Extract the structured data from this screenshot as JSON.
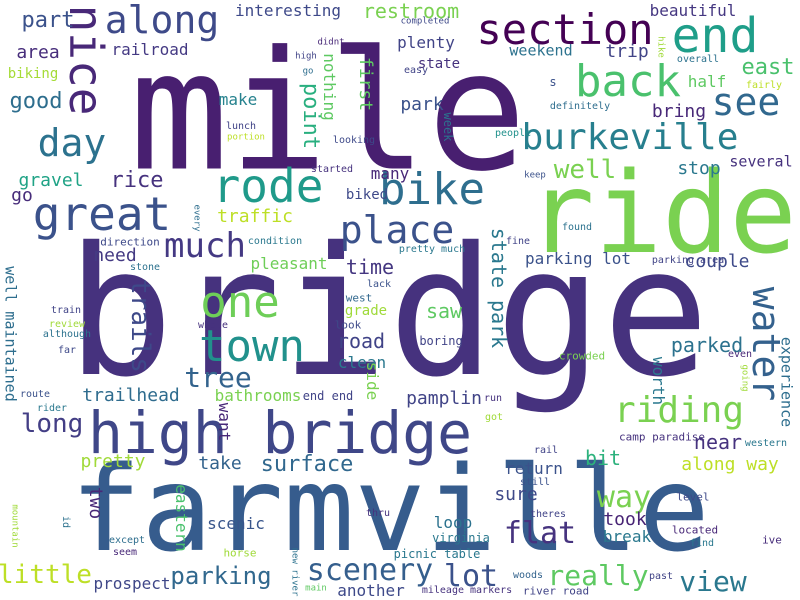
{
  "words": [
    {
      "text": "bridge",
      "color": "#46327e"
    },
    {
      "text": "farmville",
      "color": "#365c8d"
    },
    {
      "text": "mile",
      "color": "#481f70"
    },
    {
      "text": "ride",
      "color": "#7ad151"
    },
    {
      "text": "high bridge",
      "color": "#3f4788"
    },
    {
      "text": "bike",
      "color": "#2e6e8e"
    },
    {
      "text": "rode",
      "color": "#1f9a8a"
    },
    {
      "text": "great",
      "color": "#3b528b"
    },
    {
      "text": "section",
      "color": "#440154"
    },
    {
      "text": "end",
      "color": "#1f9e89"
    },
    {
      "text": "back",
      "color": "#4ac16d"
    },
    {
      "text": "along",
      "color": "#3e4a89"
    },
    {
      "text": "nice",
      "color": "#482878"
    },
    {
      "text": "burkeville",
      "color": "#277f8e"
    },
    {
      "text": "see",
      "color": "#31688e"
    },
    {
      "text": "day",
      "color": "#2c728e"
    },
    {
      "text": "place",
      "color": "#3b528b"
    },
    {
      "text": "much",
      "color": "#443983"
    },
    {
      "text": "one",
      "color": "#6ece58"
    },
    {
      "text": "town",
      "color": "#21918c"
    },
    {
      "text": "water",
      "color": "#34618d"
    },
    {
      "text": "riding",
      "color": "#7ad151"
    },
    {
      "text": "scenery",
      "color": "#355f8d"
    },
    {
      "text": "lot",
      "color": "#3b528b"
    },
    {
      "text": "really",
      "color": "#5ec962"
    },
    {
      "text": "way",
      "color": "#7ad151"
    },
    {
      "text": "view",
      "color": "#2a788e"
    },
    {
      "text": "flat",
      "color": "#46337f"
    },
    {
      "text": "parking",
      "color": "#31688e"
    },
    {
      "text": "little",
      "color": "#bddf26"
    },
    {
      "text": "trails",
      "color": "#3e4989"
    },
    {
      "text": "tree",
      "color": "#33638d"
    },
    {
      "text": "long",
      "color": "#433e85"
    },
    {
      "text": "surface",
      "color": "#31688e"
    },
    {
      "text": "point",
      "color": "#29af7f"
    },
    {
      "text": "well",
      "color": "#7ad151"
    },
    {
      "text": "east",
      "color": "#4ac16d"
    },
    {
      "text": "part",
      "color": "#3b528b"
    },
    {
      "text": "rice",
      "color": "#46327e"
    },
    {
      "text": "good",
      "color": "#2e6e8e"
    },
    {
      "text": "restroom",
      "color": "#7ad151"
    },
    {
      "text": "time",
      "color": "#453781"
    },
    {
      "text": "road",
      "color": "#404387"
    },
    {
      "text": "saw",
      "color": "#5ec962"
    },
    {
      "text": "parked",
      "color": "#2c728e"
    },
    {
      "text": "state park",
      "color": "#2a788e"
    },
    {
      "text": "couple",
      "color": "#3e4a89"
    },
    {
      "text": "water",
      "color": "#34618d"
    },
    {
      "text": "near",
      "color": "#46327e"
    },
    {
      "text": "pamplin",
      "color": "#414487"
    },
    {
      "text": "trailhead",
      "color": "#2f6c8e"
    },
    {
      "text": "bathrooms",
      "color": "#7ad151"
    },
    {
      "text": "pretty",
      "color": "#a0da39"
    },
    {
      "text": "take",
      "color": "#33638d"
    },
    {
      "text": "sure",
      "color": "#3e4989"
    },
    {
      "text": "bit",
      "color": "#2db27d"
    },
    {
      "text": "along way",
      "color": "#bddf26"
    },
    {
      "text": "took",
      "color": "#482475"
    },
    {
      "text": "break",
      "color": "#2a788e"
    },
    {
      "text": "loop",
      "color": "#2c728e"
    },
    {
      "text": "scenic",
      "color": "#39568c"
    },
    {
      "text": "two",
      "color": "#482878"
    },
    {
      "text": "eastern",
      "color": "#4ac16d"
    },
    {
      "text": "prospect",
      "color": "#3f4788"
    },
    {
      "text": "another",
      "color": "#3e4989"
    },
    {
      "text": "return",
      "color": "#3b528b"
    },
    {
      "text": "trip",
      "color": "#414487"
    },
    {
      "text": "bring",
      "color": "#482878"
    },
    {
      "text": "half",
      "color": "#5ec962"
    },
    {
      "text": "stop",
      "color": "#2a788e"
    },
    {
      "text": "several",
      "color": "#46327e"
    },
    {
      "text": "gravel",
      "color": "#20a386"
    },
    {
      "text": "traffic",
      "color": "#bddf26"
    },
    {
      "text": "need",
      "color": "#443a83"
    },
    {
      "text": "pleasant",
      "color": "#6ece58"
    },
    {
      "text": "make",
      "color": "#26828e"
    },
    {
      "text": "nothing",
      "color": "#5ec962"
    },
    {
      "text": "first",
      "color": "#5ec962"
    },
    {
      "text": "park",
      "color": "#3b528b"
    },
    {
      "text": "many",
      "color": "#482878"
    },
    {
      "text": "biked",
      "color": "#3e4989"
    },
    {
      "text": "clean",
      "color": "#2a788e"
    },
    {
      "text": "grade",
      "color": "#9fda3a"
    },
    {
      "text": "side",
      "color": "#7ad151"
    },
    {
      "text": "want",
      "color": "#482878"
    },
    {
      "text": "worth",
      "color": "#2a788e"
    },
    {
      "text": "experience",
      "color": "#2e6e8e"
    },
    {
      "text": "interesting",
      "color": "#3e4989"
    },
    {
      "text": "beautiful",
      "color": "#453781"
    },
    {
      "text": "plenty",
      "color": "#414487"
    },
    {
      "text": "weekend",
      "color": "#2c728e"
    },
    {
      "text": "railroad",
      "color": "#443983"
    },
    {
      "text": "area",
      "color": "#472d7b"
    },
    {
      "text": "biking",
      "color": "#a5db36"
    },
    {
      "text": "go",
      "color": "#472c7a"
    },
    {
      "text": "well maintained",
      "color": "#2e6e8e"
    },
    {
      "text": "end end",
      "color": "#404387"
    },
    {
      "text": "west",
      "color": "#31688e"
    },
    {
      "text": "look",
      "color": "#3e4a89"
    },
    {
      "text": "lack",
      "color": "#3b528b"
    },
    {
      "text": "boring",
      "color": "#414487"
    },
    {
      "text": "whole",
      "color": "#46327e"
    },
    {
      "text": "direction",
      "color": "#3e4989"
    },
    {
      "text": "stone",
      "color": "#2c728e"
    },
    {
      "text": "condition",
      "color": "#2a788e"
    },
    {
      "text": "pretty much",
      "color": "#2a788e"
    },
    {
      "text": "parking lot",
      "color": "#3b528b"
    },
    {
      "text": "parking area",
      "color": "#414487"
    },
    {
      "text": "fine",
      "color": "#404387"
    },
    {
      "text": "found",
      "color": "#2c728e"
    },
    {
      "text": "camp paradise",
      "color": "#46327e"
    },
    {
      "text": "crowded",
      "color": "#7ad151"
    },
    {
      "text": "even",
      "color": "#482878"
    },
    {
      "text": "going",
      "color": "#a0da39"
    },
    {
      "text": "western",
      "color": "#2a788e"
    },
    {
      "text": "located",
      "color": "#482878"
    },
    {
      "text": "level",
      "color": "#3e4989"
    },
    {
      "text": "find",
      "color": "#2a788e"
    },
    {
      "text": "ive",
      "color": "#472d7b"
    },
    {
      "text": "past",
      "color": "#414487"
    },
    {
      "text": "picnic table",
      "color": "#2a788e"
    },
    {
      "text": "thru",
      "color": "#46327e"
    },
    {
      "text": "still",
      "color": "#3b528b"
    },
    {
      "text": "theres",
      "color": "#404387"
    },
    {
      "text": "virginia",
      "color": "#2a788e"
    },
    {
      "text": "woods",
      "color": "#33638d"
    },
    {
      "text": "river road",
      "color": "#414487"
    },
    {
      "text": "mileage markers",
      "color": "#46327e"
    },
    {
      "text": "new river",
      "color": "#2c728e"
    },
    {
      "text": "main",
      "color": "#5ec962"
    },
    {
      "text": "horse",
      "color": "#a0da39"
    },
    {
      "text": "seem",
      "color": "#482878"
    },
    {
      "text": "except",
      "color": "#2e6e8e"
    },
    {
      "text": "mountain",
      "color": "#a0da39"
    },
    {
      "text": "id",
      "color": "#2c728e"
    },
    {
      "text": "rail",
      "color": "#404387"
    },
    {
      "text": "got",
      "color": "#a0da39"
    },
    {
      "text": "run",
      "color": "#46327e"
    },
    {
      "text": "rider",
      "color": "#2a788e"
    },
    {
      "text": "route",
      "color": "#3b528b"
    },
    {
      "text": "far",
      "color": "#3e4989"
    },
    {
      "text": "although",
      "color": "#2c728e"
    },
    {
      "text": "review",
      "color": "#a0da39"
    },
    {
      "text": "train",
      "color": "#414487"
    },
    {
      "text": "every",
      "color": "#2e6e8e"
    },
    {
      "text": "started",
      "color": "#46327e"
    },
    {
      "text": "keep",
      "color": "#3b528b"
    },
    {
      "text": "looking",
      "color": "#3e4989"
    },
    {
      "text": "lunch",
      "color": "#404387"
    },
    {
      "text": "portion",
      "color": "#bddf26"
    },
    {
      "text": "people",
      "color": "#21918c"
    },
    {
      "text": "definitely",
      "color": "#2e6e8e"
    },
    {
      "text": "s",
      "color": "#3b528b"
    },
    {
      "text": "week",
      "color": "#2c728e"
    },
    {
      "text": "state",
      "color": "#46327e"
    },
    {
      "text": "easy",
      "color": "#414487"
    },
    {
      "text": "completed",
      "color": "#3e4989"
    },
    {
      "text": "didnt",
      "color": "#482878"
    },
    {
      "text": "high",
      "color": "#404387"
    },
    {
      "text": "go",
      "color": "#2e6e8e"
    },
    {
      "text": "hike",
      "color": "#a0da39"
    },
    {
      "text": "overall",
      "color": "#2c728e"
    },
    {
      "text": "fairly",
      "color": "#bddf26"
    }
  ]
}
